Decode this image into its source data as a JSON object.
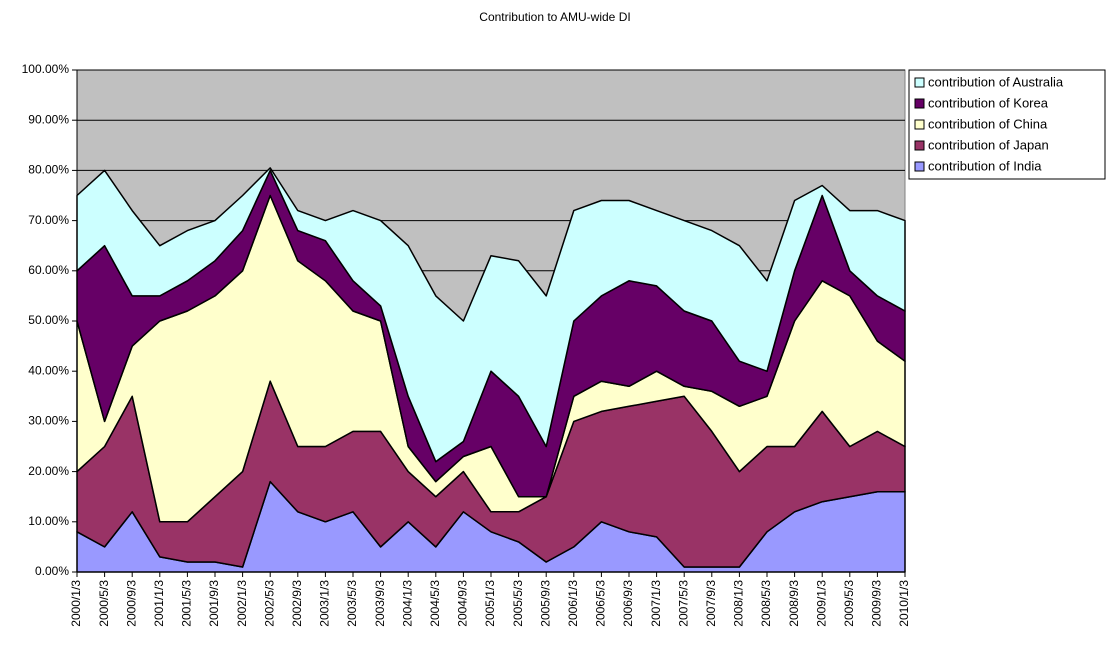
{
  "chart_data": {
    "type": "stacked_area",
    "title": "Contribution to AMU-wide DI",
    "categories": [
      "2000/1/3",
      "2000/5/3",
      "2000/9/3",
      "2001/1/3",
      "2001/5/3",
      "2001/9/3",
      "2002/1/3",
      "2002/5/3",
      "2002/9/3",
      "2003/1/3",
      "2003/5/3",
      "2003/9/3",
      "2004/1/3",
      "2004/5/3",
      "2004/9/3",
      "2005/1/3",
      "2005/5/3",
      "2005/9/3",
      "2006/1/3",
      "2006/5/3",
      "2006/9/3",
      "2007/1/3",
      "2007/5/3",
      "2007/9/3",
      "2008/1/3",
      "2008/5/3",
      "2008/9/3",
      "2009/1/3",
      "2009/5/3",
      "2009/9/3",
      "2010/1/3"
    ],
    "series": [
      {
        "name": "contribution of India",
        "color": "#9999ff",
        "values": [
          8,
          5,
          12,
          3,
          2,
          2,
          1,
          18,
          12,
          10,
          12,
          5,
          10,
          5,
          12,
          8,
          6,
          2,
          5,
          10,
          8,
          7,
          1,
          1,
          1,
          8,
          12,
          14,
          15,
          16,
          16
        ]
      },
      {
        "name": "contribution of Japan",
        "color": "#993366",
        "values": [
          12,
          20,
          23,
          7,
          8,
          13,
          19,
          20,
          13,
          15,
          16,
          23,
          10,
          10,
          8,
          4,
          6,
          13,
          25,
          22,
          25,
          27,
          34,
          27,
          19,
          17,
          13,
          18,
          10,
          12,
          9
        ]
      },
      {
        "name": "contribution of China",
        "color": "#ffffcc",
        "values": [
          30,
          5,
          10,
          40,
          42,
          40,
          40,
          37,
          37,
          33,
          24,
          22,
          5,
          3,
          3,
          13,
          3,
          0,
          5,
          6,
          4,
          6,
          2,
          8,
          13,
          10,
          25,
          26,
          30,
          18,
          17
        ]
      },
      {
        "name": "contribution of Korea",
        "color": "#660066",
        "values": [
          10,
          35,
          10,
          5,
          6,
          7,
          8,
          5,
          6,
          8,
          6,
          3,
          10,
          4,
          3,
          15,
          20,
          10,
          15,
          17,
          21,
          17,
          15,
          14,
          9,
          5,
          10,
          17,
          5,
          9,
          10
        ]
      },
      {
        "name": "contribution of Australia",
        "color": "#ccffff",
        "values": [
          15,
          15,
          17,
          10,
          10,
          8,
          7,
          0.5,
          4,
          4,
          14,
          17,
          30,
          33,
          24,
          23,
          27,
          30,
          22,
          19,
          16,
          15,
          18,
          18,
          23,
          18,
          14,
          2,
          12,
          17,
          18
        ]
      }
    ],
    "ylim": [
      0,
      100
    ],
    "yticks": [
      {
        "value": 0,
        "label": "0.00%"
      },
      {
        "value": 10,
        "label": "10.00%"
      },
      {
        "value": 20,
        "label": "20.00%"
      },
      {
        "value": 30,
        "label": "30.00%"
      },
      {
        "value": 40,
        "label": "40.00%"
      },
      {
        "value": 50,
        "label": "50.00%"
      },
      {
        "value": 60,
        "label": "60.00%"
      },
      {
        "value": 70,
        "label": "70.00%"
      },
      {
        "value": 80,
        "label": "80.00%"
      },
      {
        "value": 90,
        "label": "90.00%"
      },
      {
        "value": 100,
        "label": "100.00%"
      }
    ],
    "grid": true,
    "legend": "right"
  }
}
